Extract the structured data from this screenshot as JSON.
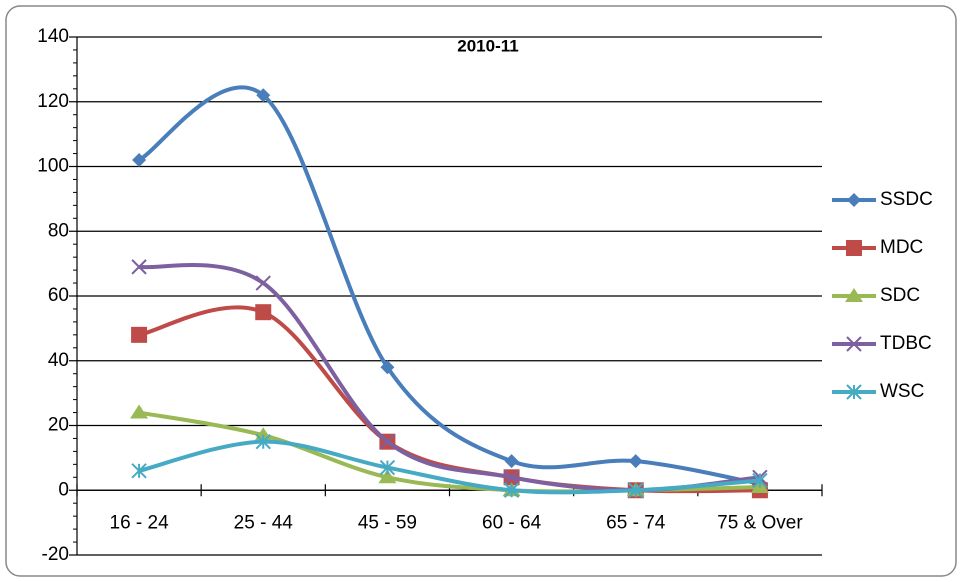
{
  "chart_data": {
    "type": "line",
    "title": "2010-11",
    "categories": [
      "16 - 24",
      "25 - 44",
      "45 - 59",
      "60 - 64",
      "65 - 74",
      "75 & Over"
    ],
    "series": [
      {
        "name": "SSDC",
        "color": "#4a7ebb",
        "marker": "diamond",
        "values": [
          102,
          122,
          38,
          9,
          9,
          2
        ]
      },
      {
        "name": "MDC",
        "color": "#be4b48",
        "marker": "square",
        "values": [
          48,
          55,
          15,
          4,
          0,
          0
        ]
      },
      {
        "name": "SDC",
        "color": "#98b954",
        "marker": "triangle",
        "values": [
          24,
          17,
          4,
          0,
          0,
          1
        ]
      },
      {
        "name": "TDBC",
        "color": "#7d60a0",
        "marker": "x",
        "values": [
          69,
          64,
          15,
          4,
          0,
          4
        ]
      },
      {
        "name": "WSC",
        "color": "#46aac5",
        "marker": "asterisk",
        "values": [
          6,
          15,
          7,
          0,
          0,
          3
        ]
      }
    ],
    "ylim": [
      -20,
      140
    ],
    "yticks": [
      -20,
      0,
      20,
      40,
      60,
      80,
      100,
      120,
      140
    ],
    "grid": true,
    "smooth": true,
    "legend": "right"
  }
}
